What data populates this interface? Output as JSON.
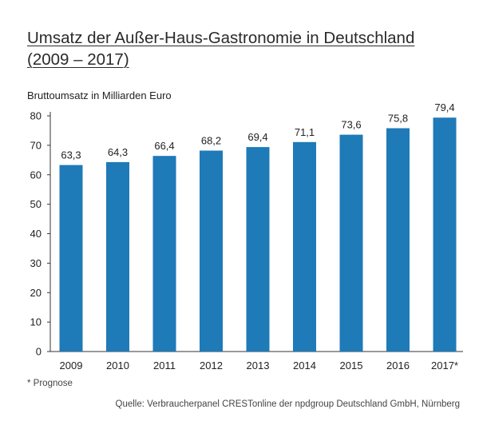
{
  "title_line1": "Umsatz der Außer-Haus-Gastronomie in Deutschland",
  "title_line2": "(2009 – 2017)",
  "footnote": "* Prognose",
  "source": "Quelle: Verbraucherpanel CRESTonline der npdgroup Deutschland GmbH, Nürnberg",
  "colors": {
    "bar": "#1f7ab8",
    "axis": "#333333",
    "text": "#222222"
  },
  "chart_data": {
    "type": "bar",
    "ylabel": "Bruttoumsatz in Milliarden Euro",
    "categories": [
      "2009",
      "2010",
      "2011",
      "2012",
      "2013",
      "2014",
      "2015",
      "2016",
      "2017*"
    ],
    "values": [
      63.3,
      64.3,
      66.4,
      68.2,
      69.4,
      71.1,
      73.6,
      75.8,
      79.4
    ],
    "value_labels": [
      "63,3",
      "64,3",
      "66,4",
      "68,2",
      "69,4",
      "71,1",
      "73,6",
      "75,8",
      "79,4"
    ],
    "ylim": [
      0,
      80
    ],
    "yticks": [
      0,
      10,
      20,
      30,
      40,
      50,
      60,
      70,
      80
    ],
    "grid": false,
    "legend": "none"
  }
}
